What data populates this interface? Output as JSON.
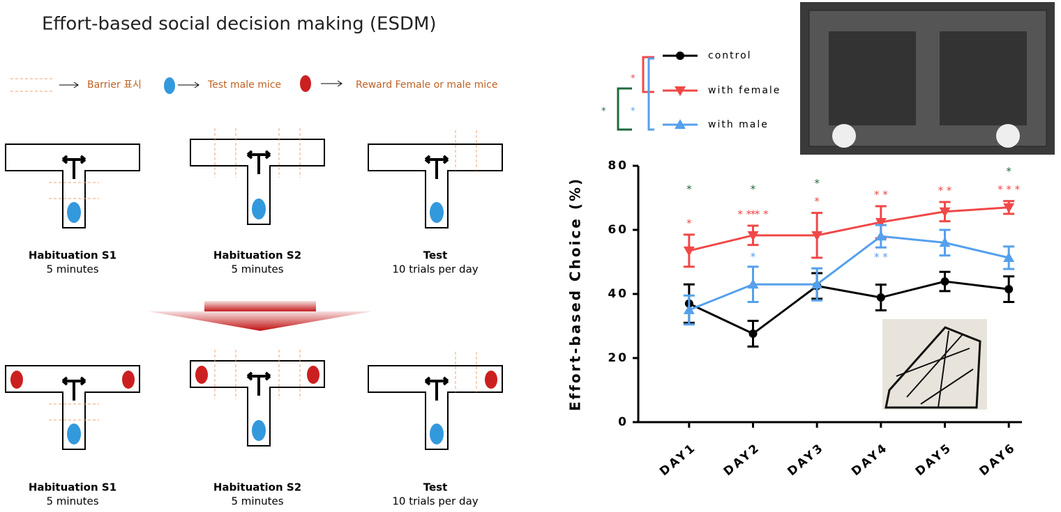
{
  "diagram": {
    "title": "Effort-based social decision making (ESDM)",
    "legend": [
      "Barrier 표시",
      "Test male mice",
      "Reward Female or male mice"
    ],
    "rows": [
      [
        {
          "title": "Habituation S1",
          "subtitle": "5 minutes"
        },
        {
          "title": "Habituation S2",
          "subtitle": "5 minutes"
        },
        {
          "title": "Test",
          "subtitle": "10 trials per day"
        }
      ],
      [
        {
          "title": "Habituation S1",
          "subtitle": "5 minutes"
        },
        {
          "title": "Habituation S2",
          "subtitle": "5 minutes"
        },
        {
          "title": "Test",
          "subtitle": "10 trials per day"
        }
      ]
    ]
  },
  "chart_data": {
    "type": "line",
    "y_label": "Effort-based Choice (%)",
    "categories": [
      "DAY1",
      "DAY2",
      "DAY3",
      "DAY4",
      "DAY5",
      "DAY6"
    ],
    "ylim": [
      0,
      80
    ],
    "yticks": [
      0,
      20,
      40,
      60,
      80
    ],
    "series": [
      {
        "name": "control",
        "color": "#000000",
        "marker": "circle",
        "values": [
          37,
          27.6,
          42.5,
          38.9,
          43.9,
          41.5
        ],
        "errors": [
          6,
          4,
          4,
          4,
          3,
          4
        ]
      },
      {
        "name": "with female",
        "color": "#f04848",
        "marker": "triangle-down",
        "values": [
          53.5,
          58.3,
          58.3,
          62.4,
          65.7,
          67
        ],
        "errors": [
          5,
          3,
          7,
          5,
          3,
          2
        ],
        "significance": [
          [
            "*",
            "*",
            "*",
            "* *",
            "* *",
            "* * *"
          ]
        ]
      },
      {
        "name": "with male",
        "color": "#55a0ec",
        "marker": "triangle-up",
        "values": [
          35,
          43,
          43,
          58,
          56,
          51.3
        ],
        "errors": [
          4.5,
          5.5,
          5,
          3.5,
          4,
          3.5
        ],
        "significance": [
          [
            null,
            "*",
            null,
            "* *",
            null,
            null
          ]
        ]
      }
    ],
    "top_significance": {
      "color": "#1e6b3c",
      "marks": [
        "*",
        "*",
        "*",
        null,
        null,
        "*"
      ]
    },
    "extra_significance": {
      "color": "#f04848",
      "marks": [
        null,
        "* * * *",
        null,
        null,
        null,
        null
      ]
    },
    "comparisons": [
      {
        "text": "*",
        "color": "#f04848"
      },
      {
        "text": "*",
        "color": "#55a0ec"
      },
      {
        "text": "*",
        "color": "#1e6b3c"
      }
    ]
  }
}
